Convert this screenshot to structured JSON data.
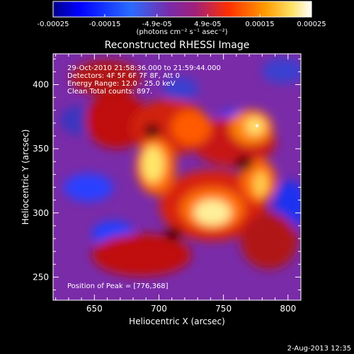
{
  "chart_data": {
    "type": "heatmap",
    "title": "Reconstructed RHESSI Image",
    "xlabel": "Heliocentric X (arcsec)",
    "ylabel": "Heliocentric Y (arcsec)",
    "xlim": [
      618,
      810
    ],
    "ylim": [
      232,
      424
    ],
    "x_ticks": [
      "650",
      "700",
      "750",
      "800"
    ],
    "y_ticks": [
      "250",
      "300",
      "350",
      "400"
    ],
    "colorbar": {
      "range": [
        -0.00025,
        0.00025
      ],
      "ticks": [
        "-0.00025",
        "-0.00015",
        "-4.9e-05",
        "4.9e-05",
        "0.00015",
        "0.00025"
      ],
      "units": "(photons cm⁻² s⁻¹ asec⁻²)"
    },
    "annotations": {
      "time": "29-Oct-2010 21:58:36.000 to 21:59:44.000",
      "detectors": "Detectors: 4F 5F 6F 7F 8F, Att 0",
      "energy": "Energy Range: 12.0 - 25.0 keV",
      "clean": "Clean    Total counts: 897.",
      "peak": "Position of Peak = [776,368]"
    },
    "peak_position": [
      776,
      368
    ],
    "footer_date": "2-Aug-2013 12:35",
    "colors": {
      "negative": "#0000ff",
      "low_negative": "#7a2ba8",
      "low_positive": "#c81818",
      "mid_positive": "#ff6a00",
      "high_positive": "#fff3a0"
    }
  }
}
